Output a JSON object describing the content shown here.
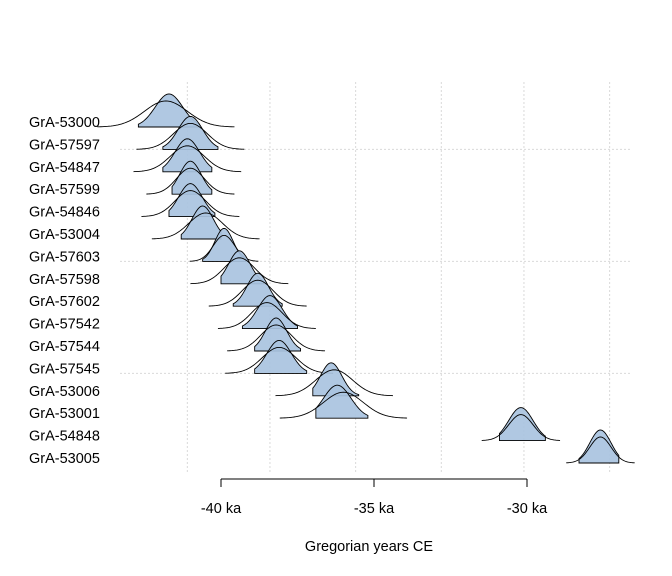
{
  "chart_data": {
    "type": "ridgeline",
    "xlabel": "Gregorian years CE",
    "x_unit": "ka",
    "xlim": [
      -44.1,
      -26.5
    ],
    "axis_ticks": [
      -40,
      -35,
      -30
    ],
    "tick_labels": [
      "-40 ka",
      "-35 ka",
      "-30 ka"
    ],
    "vertical_gridlines": [
      -41.1,
      -38.4,
      -35.6,
      -32.8,
      -30.1,
      -27.3
    ],
    "horizontal_gridlines_after": [
      "GrA-57597",
      "GrA-57603",
      "GrA-57545"
    ],
    "grid": true,
    "fill_color": "#a9c3e0",
    "fill_overlap_color": "#93afd2",
    "line_color": "#000000",
    "grid_color": "#d9d9d9",
    "series": [
      {
        "name": "GrA-53000",
        "prior_mean": -41.8,
        "prior_sd": 0.7,
        "post_mean": -41.7,
        "post_sd": 0.45,
        "hpd": [
          -42.7,
          -40.7
        ]
      },
      {
        "name": "GrA-57597",
        "prior_mean": -41.0,
        "prior_sd": 0.55,
        "post_mean": -41.0,
        "post_sd": 0.4,
        "hpd": [
          -41.9,
          -40.1
        ]
      },
      {
        "name": "GrA-54847",
        "prior_mean": -41.1,
        "prior_sd": 0.55,
        "post_mean": -41.1,
        "post_sd": 0.4,
        "hpd": [
          -41.9,
          -40.3
        ]
      },
      {
        "name": "GrA-57599",
        "prior_mean": -41.0,
        "prior_sd": 0.45,
        "post_mean": -41.0,
        "post_sd": 0.35,
        "hpd": [
          -41.6,
          -40.3
        ]
      },
      {
        "name": "GrA-54846",
        "prior_mean": -41.0,
        "prior_sd": 0.5,
        "post_mean": -41.0,
        "post_sd": 0.38,
        "hpd": [
          -41.7,
          -40.2
        ]
      },
      {
        "name": "GrA-53004",
        "prior_mean": -40.5,
        "prior_sd": 0.55,
        "post_mean": -40.6,
        "post_sd": 0.35,
        "hpd": [
          -41.3,
          -40.0
        ]
      },
      {
        "name": "GrA-57603",
        "prior_mean": -39.9,
        "prior_sd": 0.35,
        "post_mean": -39.9,
        "post_sd": 0.3,
        "hpd": [
          -40.6,
          -39.2
        ]
      },
      {
        "name": "GrA-57598",
        "prior_mean": -39.4,
        "prior_sd": 0.5,
        "post_mean": -39.4,
        "post_sd": 0.35,
        "hpd": [
          -40.0,
          -38.6
        ]
      },
      {
        "name": "GrA-57602",
        "prior_mean": -38.8,
        "prior_sd": 0.5,
        "post_mean": -38.8,
        "post_sd": 0.35,
        "hpd": [
          -39.6,
          -38.0
        ]
      },
      {
        "name": "GrA-57542",
        "prior_mean": -38.5,
        "prior_sd": 0.5,
        "post_mean": -38.4,
        "post_sd": 0.4,
        "hpd": [
          -39.3,
          -37.5
        ]
      },
      {
        "name": "GrA-57544",
        "prior_mean": -38.2,
        "prior_sd": 0.5,
        "post_mean": -38.2,
        "post_sd": 0.35,
        "hpd": [
          -38.9,
          -37.4
        ]
      },
      {
        "name": "GrA-57545",
        "prior_mean": -38.1,
        "prior_sd": 0.55,
        "post_mean": -38.1,
        "post_sd": 0.4,
        "hpd": [
          -38.9,
          -37.2
        ]
      },
      {
        "name": "GrA-53006",
        "prior_mean": -36.3,
        "prior_sd": 0.6,
        "post_mean": -36.4,
        "post_sd": 0.35,
        "hpd": [
          -37.0,
          -35.5
        ]
      },
      {
        "name": "GrA-53001",
        "prior_mean": -36.0,
        "prior_sd": 0.65,
        "post_mean": -36.2,
        "post_sd": 0.45,
        "hpd": [
          -36.9,
          -35.2
        ]
      },
      {
        "name": "GrA-54848",
        "prior_mean": -30.2,
        "prior_sd": 0.4,
        "post_mean": -30.2,
        "post_sd": 0.4,
        "hpd": [
          -30.9,
          -29.4
        ]
      },
      {
        "name": "GrA-53005",
        "prior_mean": -27.6,
        "prior_sd": 0.35,
        "post_mean": -27.6,
        "post_sd": 0.35,
        "hpd": [
          -28.3,
          -27.0
        ]
      }
    ]
  }
}
